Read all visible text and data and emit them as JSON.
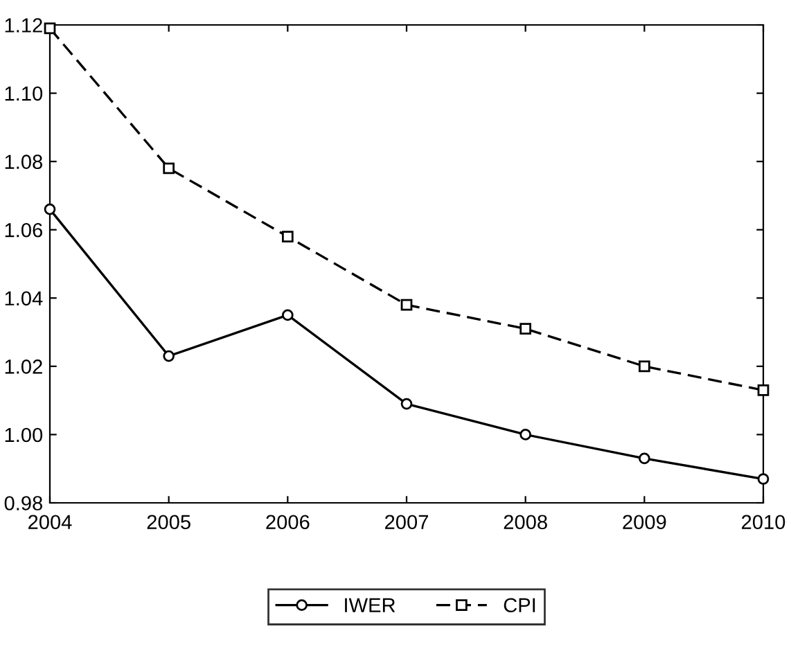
{
  "chart_data": {
    "type": "line",
    "x": [
      2004,
      2005,
      2006,
      2007,
      2008,
      2009,
      2010
    ],
    "series": [
      {
        "name": "IWER",
        "color": "#000000",
        "line_style": "solid",
        "marker": "circle",
        "values": [
          1.066,
          1.023,
          1.035,
          1.009,
          1.0,
          0.993,
          0.987
        ]
      },
      {
        "name": "CPI",
        "color": "#000000",
        "line_style": "dashed",
        "marker": "square",
        "values": [
          1.119,
          1.078,
          1.058,
          1.038,
          1.031,
          1.02,
          1.013
        ]
      }
    ],
    "xlim": [
      2004,
      2010
    ],
    "xticks": [
      2004,
      2005,
      2006,
      2007,
      2008,
      2009,
      2010
    ],
    "ylim": [
      0.98,
      1.12
    ],
    "yticks": [
      {
        "value": 0.98,
        "label": "0.98"
      },
      {
        "value": 1.0,
        "label": "1.00"
      },
      {
        "value": 1.02,
        "label": "1.02"
      },
      {
        "value": 1.04,
        "label": "1.04"
      },
      {
        "value": 1.06,
        "label": "1.06"
      },
      {
        "value": 1.08,
        "label": "1.08"
      },
      {
        "value": 1.1,
        "label": "1.10"
      },
      {
        "value": 1.12,
        "label": "1.12"
      }
    ],
    "grid": false,
    "legend": "bottom"
  }
}
